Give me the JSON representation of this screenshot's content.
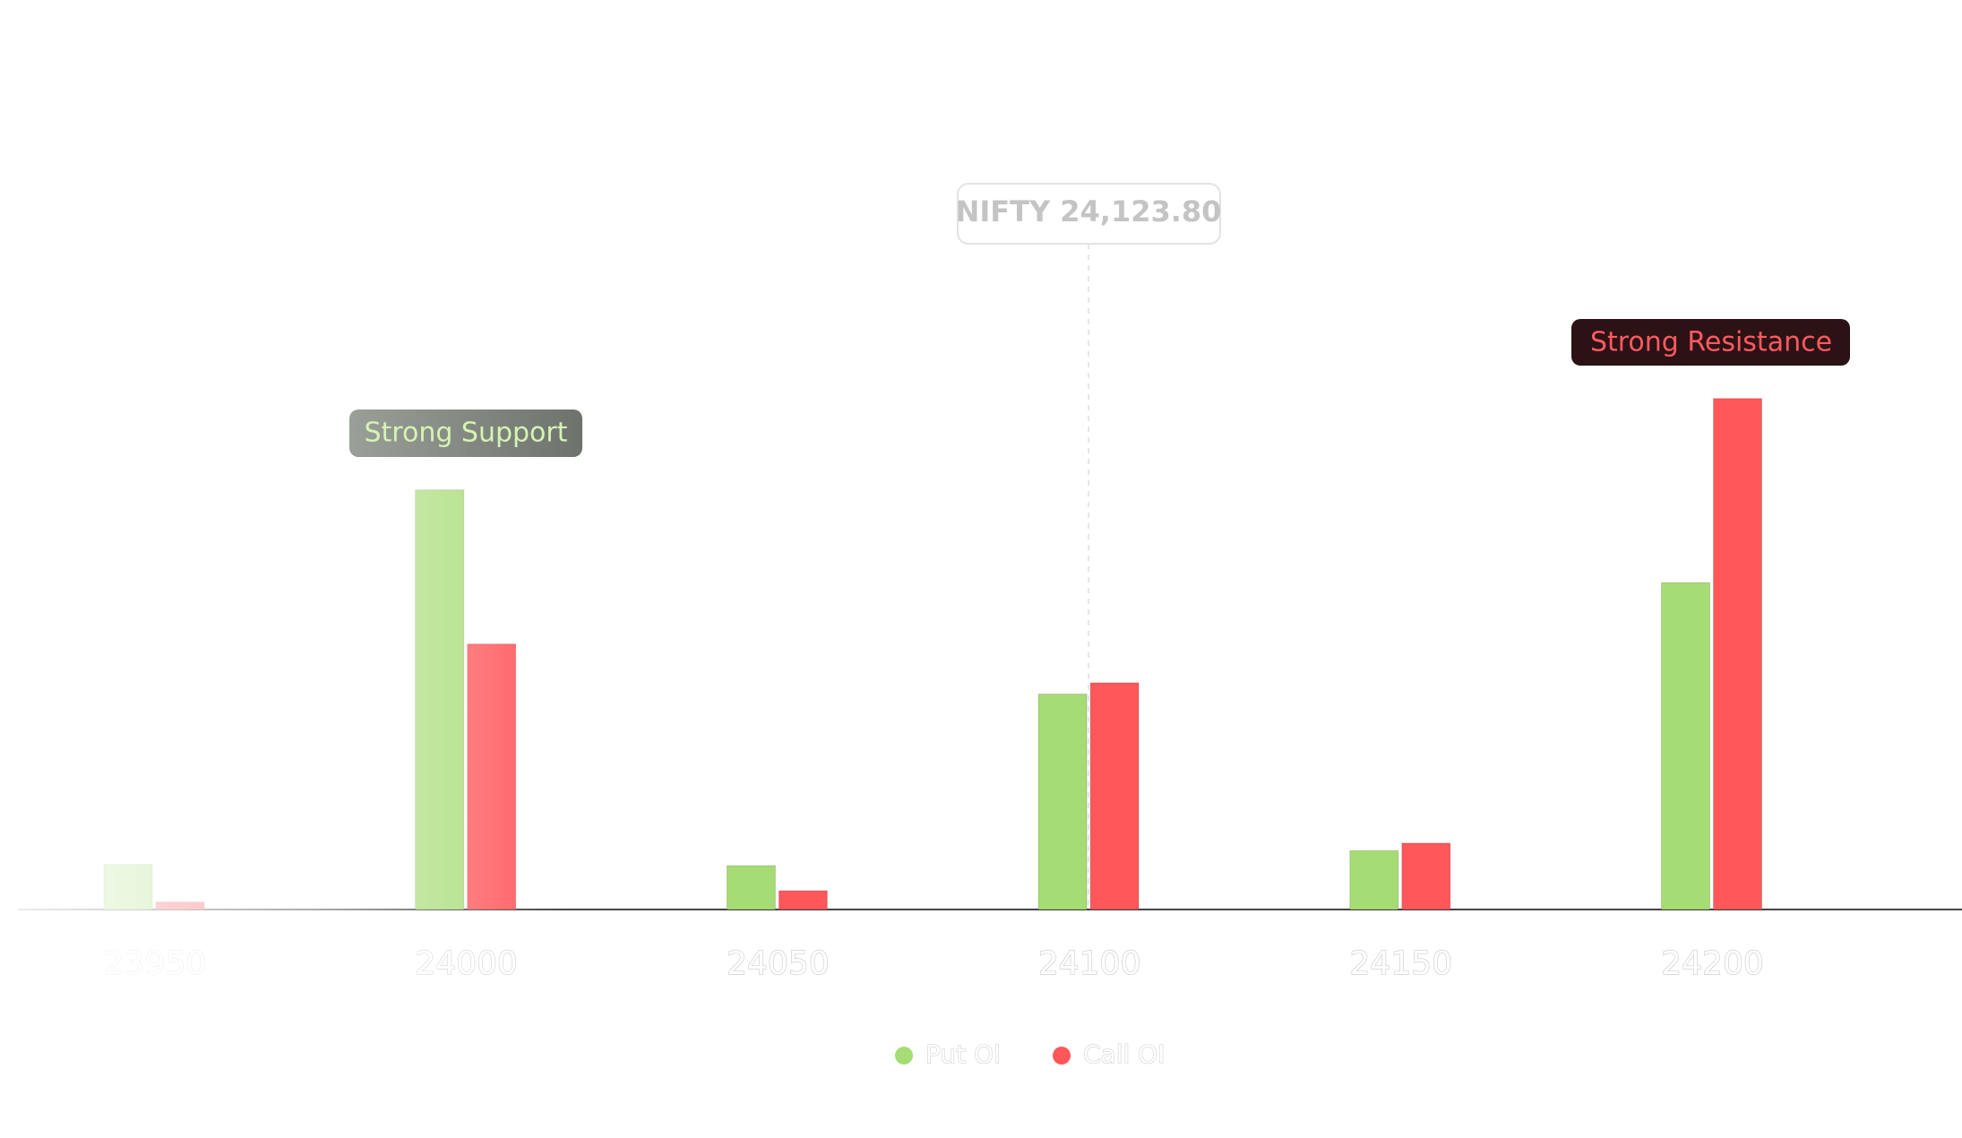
{
  "chart_data": {
    "type": "bar",
    "spot_label": "NIFTY 24,123.80",
    "support_label": "Strong Support",
    "resistance_label": "Strong Resistance",
    "categories": [
      "23950",
      "24000",
      "24050",
      "24100",
      "24150",
      "24200"
    ],
    "series": [
      {
        "name": "Put OI",
        "color": "#a6dc74",
        "values": [
          36,
          335,
          35,
          172,
          47,
          261
        ]
      },
      {
        "name": "Call OI",
        "color": "#ff575a",
        "values": [
          6,
          212,
          15,
          181,
          53,
          408
        ]
      }
    ],
    "ylim": [
      0,
      440
    ]
  }
}
